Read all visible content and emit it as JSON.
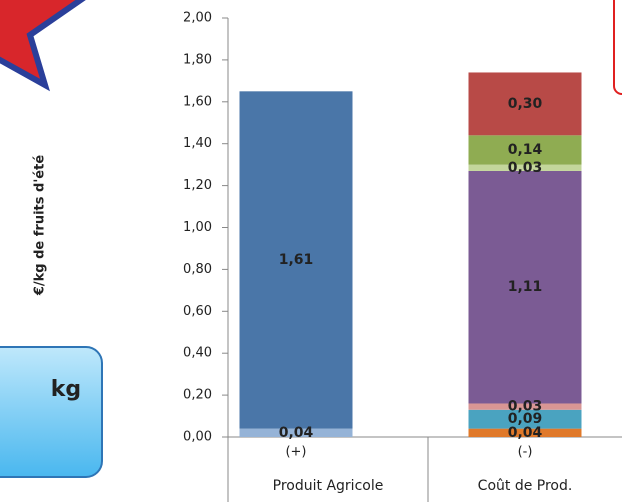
{
  "chart_data": {
    "type": "stacked-bar",
    "y_label": "€/kg de fruits d'été",
    "annotation": "kg",
    "categories": [
      "Produit Agricole",
      "Coût de Prod."
    ],
    "sign_labels": [
      "(+)",
      "(-)"
    ],
    "bars": [
      {
        "values": [
          0.04,
          1.61
        ],
        "value_labels": [
          "0,04",
          "1,61"
        ],
        "colors": [
          "#95b3d7",
          "#4a76a8"
        ]
      },
      {
        "values": [
          0.04,
          0.09,
          0.03,
          1.11,
          0.03,
          0.14,
          0.3
        ],
        "value_labels": [
          "0,04",
          "0,09",
          "0,03",
          "1,11",
          "0,03",
          "0,14",
          "0,30"
        ],
        "colors": [
          "#e0792a",
          "#4aa3c0",
          "#d99694",
          "#7b5b94",
          "#c3d69b",
          "#8fac52",
          "#b84a47"
        ]
      }
    ],
    "ylim": [
      0,
      2
    ],
    "yticks": [
      {
        "value": 0,
        "label": "0,00"
      },
      {
        "value": 0.2,
        "label": "0,20"
      },
      {
        "value": 0.4,
        "label": "0,40"
      },
      {
        "value": 0.6,
        "label": "0,60"
      },
      {
        "value": 0.8,
        "label": "0,80"
      },
      {
        "value": 1,
        "label": "1,00"
      },
      {
        "value": 1.2,
        "label": "1,20"
      },
      {
        "value": 1.4,
        "label": "1,40"
      },
      {
        "value": 1.6,
        "label": "1,60"
      },
      {
        "value": 1.8,
        "label": "1,80"
      },
      {
        "value": 2,
        "label": "2,00"
      }
    ]
  }
}
